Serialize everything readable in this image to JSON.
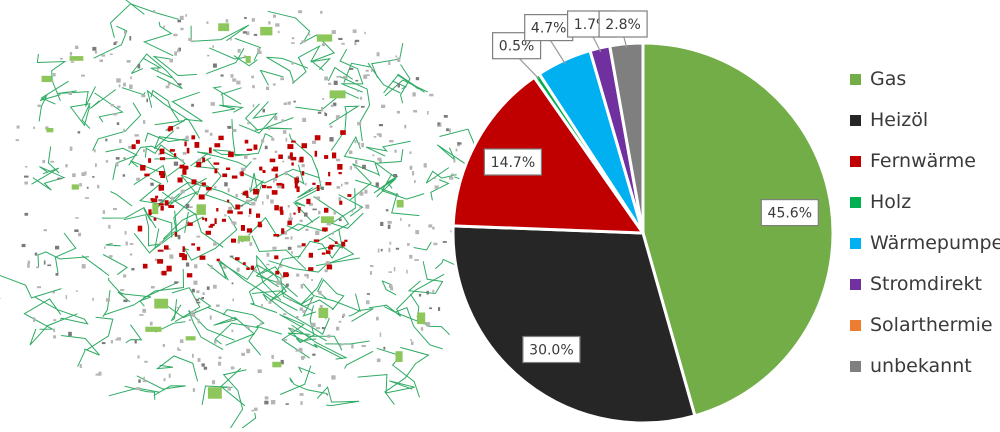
{
  "chart_data": {
    "type": "pie",
    "title": "",
    "categories": [
      "Gas",
      "Heizöl",
      "Fernwärme",
      "Holz",
      "Wärmepumpe",
      "Stromdirekt",
      "Solarthermie",
      "unbekannt"
    ],
    "values": [
      45.6,
      30.0,
      14.7,
      0.5,
      4.7,
      1.7,
      0.0,
      2.8
    ],
    "labels": [
      "45.6%",
      "30.0%",
      "14.7%",
      "0.5%",
      "4.7%",
      "1.7%",
      "",
      "2.8%"
    ],
    "colors": [
      "#72ad47",
      "#262626",
      "#c00000",
      "#00b050",
      "#00b0f0",
      "#7030a0",
      "#ed7d31",
      "#7f7f7f"
    ],
    "legend_position": "right",
    "start_angle": "12 o'clock, clockwise",
    "background": "street map of a town (Fernwärme network highlighted)"
  }
}
